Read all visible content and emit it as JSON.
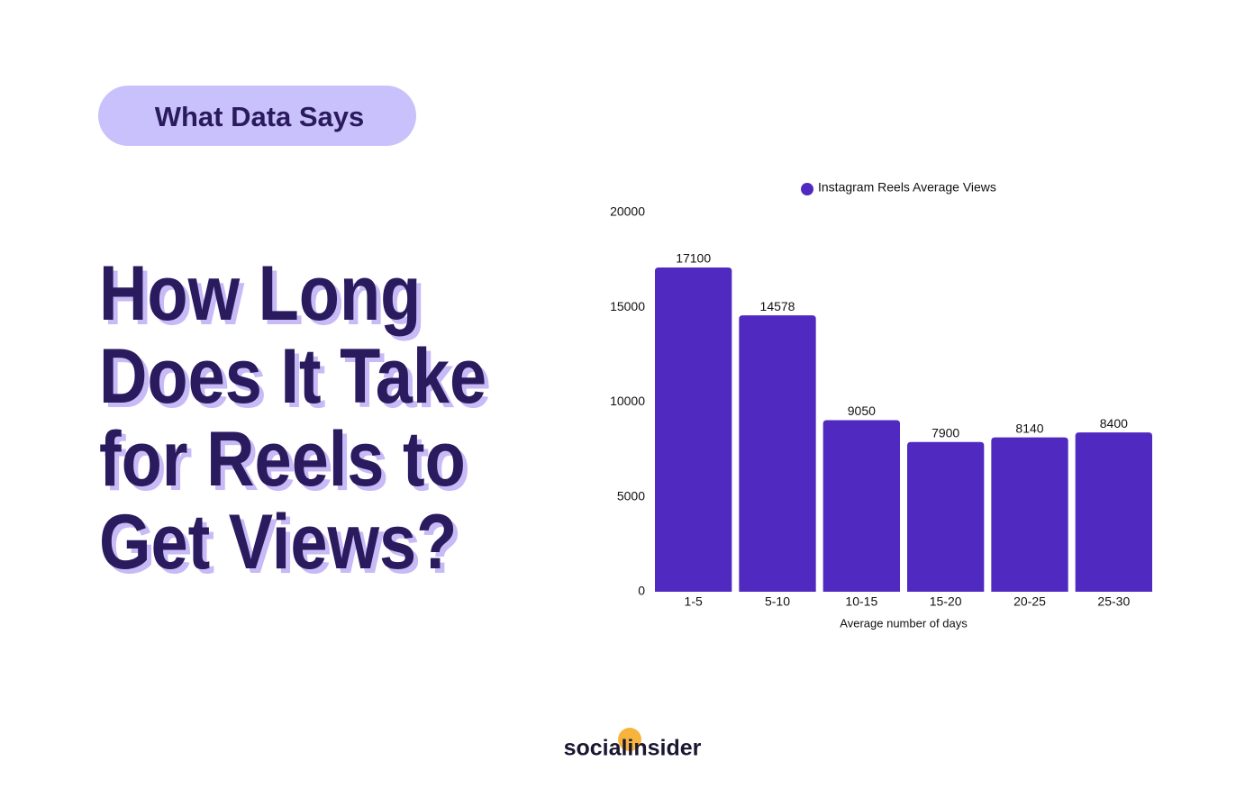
{
  "badge": "What Data Says",
  "headline": [
    "How Long",
    "Does It Take",
    "for Reels to",
    "Get Views?"
  ],
  "logo": "socialinsider",
  "chart_data": {
    "type": "bar",
    "x_label": "Average number of days",
    "categories": [
      "1-5",
      "5-10",
      "10-15",
      "15-20",
      "20-25",
      "25-30"
    ],
    "series": [
      {
        "name": "Instagram Reels Average Views",
        "color": "#5029c0",
        "values": [
          17100,
          14578,
          9050,
          7900,
          8140,
          8400
        ]
      }
    ],
    "ylim": [
      0,
      20000
    ],
    "yticks": [
      0,
      5000,
      10000,
      15000,
      20000
    ],
    "grid": false,
    "legend": "top",
    "value_labels_shown": true
  }
}
